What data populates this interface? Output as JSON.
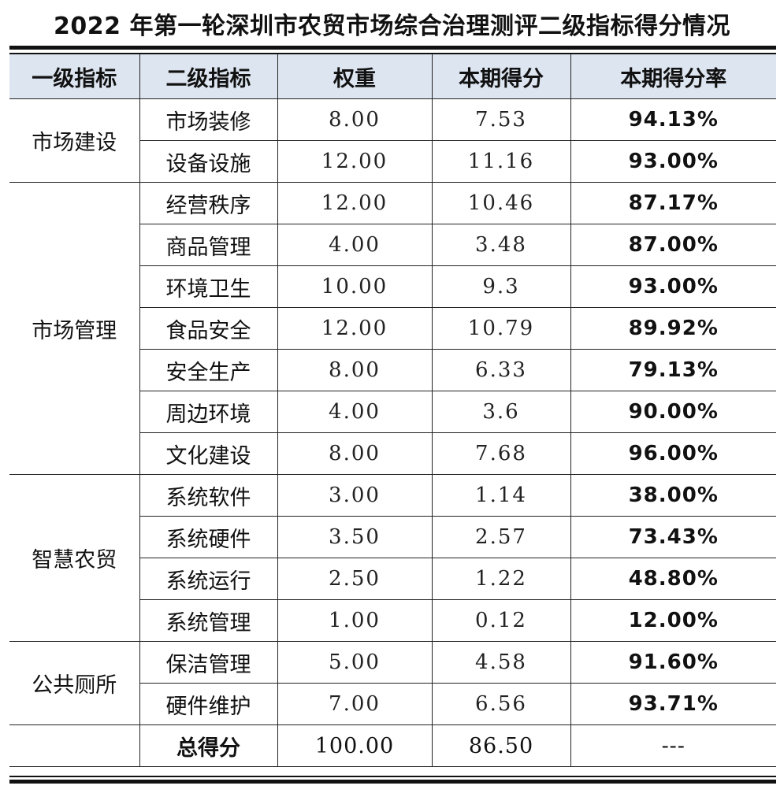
{
  "title": "2022 年第一轮深圳市农贸市场综合治理测评二级指标得分情况",
  "headers": [
    "一级指标",
    "二级指标",
    "权重",
    "本期得分",
    "本期得分率"
  ],
  "groups": [
    {
      "name": "市场建设",
      "rows": [
        {
          "item": "市场装修",
          "weight": "8.00",
          "score": "7.53",
          "rate": "94.13%"
        },
        {
          "item": "设备设施",
          "weight": "12.00",
          "score": "11.16",
          "rate": "93.00%"
        }
      ]
    },
    {
      "name": "市场管理",
      "rows": [
        {
          "item": "经营秩序",
          "weight": "12.00",
          "score": "10.46",
          "rate": "87.17%"
        },
        {
          "item": "商品管理",
          "weight": "4.00",
          "score": "3.48",
          "rate": "87.00%"
        },
        {
          "item": "环境卫生",
          "weight": "10.00",
          "score": "9.3",
          "rate": "93.00%"
        },
        {
          "item": "食品安全",
          "weight": "12.00",
          "score": "10.79",
          "rate": "89.92%"
        },
        {
          "item": "安全生产",
          "weight": "8.00",
          "score": "6.33",
          "rate": "79.13%"
        },
        {
          "item": "周边环境",
          "weight": "4.00",
          "score": "3.6",
          "rate": "90.00%"
        },
        {
          "item": "文化建设",
          "weight": "8.00",
          "score": "7.68",
          "rate": "96.00%"
        }
      ]
    },
    {
      "name": "智慧农贸",
      "rows": [
        {
          "item": "系统软件",
          "weight": "3.00",
          "score": "1.14",
          "rate": "38.00%"
        },
        {
          "item": "系统硬件",
          "weight": "3.50",
          "score": "2.57",
          "rate": "73.43%"
        },
        {
          "item": "系统运行",
          "weight": "2.50",
          "score": "1.22",
          "rate": "48.80%"
        },
        {
          "item": "系统管理",
          "weight": "1.00",
          "score": "0.12",
          "rate": "12.00%"
        }
      ]
    },
    {
      "name": "公共厕所",
      "rows": [
        {
          "item": "保洁管理",
          "weight": "5.00",
          "score": "4.58",
          "rate": "91.60%"
        },
        {
          "item": "硬件维护",
          "weight": "7.00",
          "score": "6.56",
          "rate": "93.71%"
        }
      ]
    }
  ],
  "total": {
    "label": "总得分",
    "weight": "100.00",
    "score": "86.50",
    "rate": "---"
  }
}
